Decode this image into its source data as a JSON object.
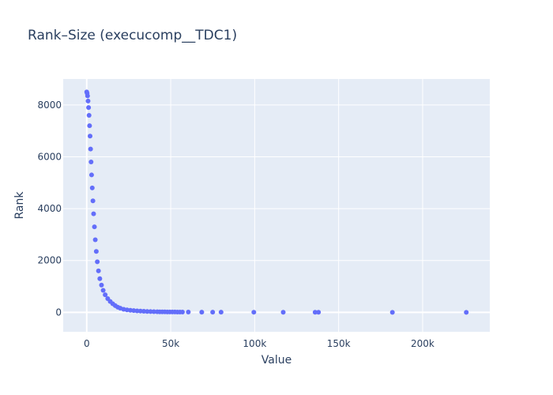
{
  "chart_data": {
    "type": "scatter",
    "title": "Rank–Size (execucomp__TDC1)",
    "xlabel": "Value",
    "ylabel": "Rank",
    "xlim": [
      -14000,
      240000
    ],
    "ylim": [
      -750,
      9000
    ],
    "x_ticks": [
      {
        "value": 0,
        "label": "0"
      },
      {
        "value": 50000,
        "label": "50k"
      },
      {
        "value": 100000,
        "label": "100k"
      },
      {
        "value": 150000,
        "label": "150k"
      },
      {
        "value": 200000,
        "label": "200k"
      }
    ],
    "y_ticks": [
      {
        "value": 0,
        "label": "0"
      },
      {
        "value": 2000,
        "label": "2000"
      },
      {
        "value": 4000,
        "label": "4000"
      },
      {
        "value": 6000,
        "label": "6000"
      },
      {
        "value": 8000,
        "label": "8000"
      }
    ],
    "grid": true,
    "marker_color": "#636efa",
    "series": [
      {
        "points": [
          [
            226000,
            1
          ],
          [
            182000,
            2
          ],
          [
            138000,
            3
          ],
          [
            136000,
            4
          ],
          [
            117000,
            5
          ],
          [
            99500,
            6
          ],
          [
            80000,
            7
          ],
          [
            75000,
            8
          ],
          [
            68500,
            9
          ],
          [
            60500,
            10
          ],
          [
            57000,
            11
          ],
          [
            55500,
            12
          ],
          [
            54000,
            13
          ],
          [
            52500,
            14
          ],
          [
            51000,
            15
          ],
          [
            49500,
            16
          ],
          [
            48000,
            17
          ],
          [
            46500,
            18
          ],
          [
            45000,
            19
          ],
          [
            43500,
            20
          ],
          [
            42000,
            22
          ],
          [
            40000,
            26
          ],
          [
            38000,
            30
          ],
          [
            36000,
            36
          ],
          [
            34000,
            42
          ],
          [
            32000,
            50
          ],
          [
            30000,
            58
          ],
          [
            28000,
            68
          ],
          [
            26000,
            80
          ],
          [
            24000,
            95
          ],
          [
            22000,
            120
          ],
          [
            20000,
            160
          ],
          [
            18500,
            200
          ],
          [
            17000,
            260
          ],
          [
            15500,
            330
          ],
          [
            14000,
            420
          ],
          [
            12500,
            530
          ],
          [
            11000,
            680
          ],
          [
            9800,
            850
          ],
          [
            8800,
            1050
          ],
          [
            7800,
            1300
          ],
          [
            7000,
            1600
          ],
          [
            6300,
            1950
          ],
          [
            5700,
            2350
          ],
          [
            5100,
            2800
          ],
          [
            4600,
            3300
          ],
          [
            4100,
            3800
          ],
          [
            3700,
            4300
          ],
          [
            3300,
            4800
          ],
          [
            2900,
            5300
          ],
          [
            2600,
            5800
          ],
          [
            2300,
            6300
          ],
          [
            2000,
            6800
          ],
          [
            1700,
            7200
          ],
          [
            1400,
            7600
          ],
          [
            1100,
            7900
          ],
          [
            800,
            8150
          ],
          [
            500,
            8350
          ],
          [
            250,
            8450
          ],
          [
            0,
            8500
          ]
        ]
      }
    ]
  }
}
